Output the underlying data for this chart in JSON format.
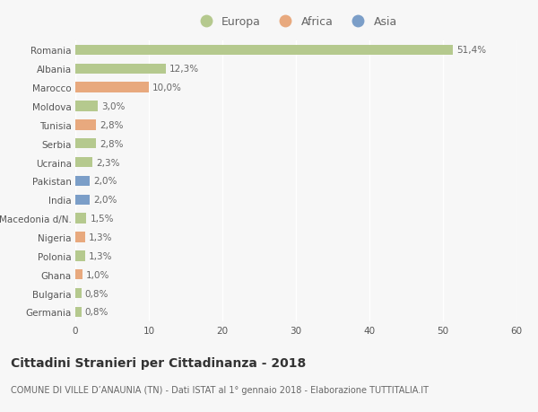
{
  "categories": [
    "Romania",
    "Albania",
    "Marocco",
    "Moldova",
    "Tunisia",
    "Serbia",
    "Ucraina",
    "Pakistan",
    "India",
    "Macedonia d/N.",
    "Nigeria",
    "Polonia",
    "Ghana",
    "Bulgaria",
    "Germania"
  ],
  "values": [
    51.4,
    12.3,
    10.0,
    3.0,
    2.8,
    2.8,
    2.3,
    2.0,
    2.0,
    1.5,
    1.3,
    1.3,
    1.0,
    0.8,
    0.8
  ],
  "labels": [
    "51,4%",
    "12,3%",
    "10,0%",
    "3,0%",
    "2,8%",
    "2,8%",
    "2,3%",
    "2,0%",
    "2,0%",
    "1,5%",
    "1,3%",
    "1,3%",
    "1,0%",
    "0,8%",
    "0,8%"
  ],
  "continents": [
    "Europa",
    "Europa",
    "Africa",
    "Europa",
    "Africa",
    "Europa",
    "Europa",
    "Asia",
    "Asia",
    "Europa",
    "Africa",
    "Europa",
    "Africa",
    "Europa",
    "Europa"
  ],
  "colors": {
    "Europa": "#b5c98e",
    "Africa": "#e8a97e",
    "Asia": "#7b9ec8"
  },
  "xlim": [
    0,
    60
  ],
  "xticks": [
    0,
    10,
    20,
    30,
    40,
    50,
    60
  ],
  "background_color": "#f7f7f7",
  "title": "Cittadini Stranieri per Cittadinanza - 2018",
  "subtitle": "COMUNE DI VILLE D’ANAUNIA (TN) - Dati ISTAT al 1° gennaio 2018 - Elaborazione TUTTITALIA.IT",
  "bar_height": 0.55,
  "label_fontsize": 7.5,
  "tick_fontsize": 7.5,
  "title_fontsize": 10,
  "subtitle_fontsize": 7
}
